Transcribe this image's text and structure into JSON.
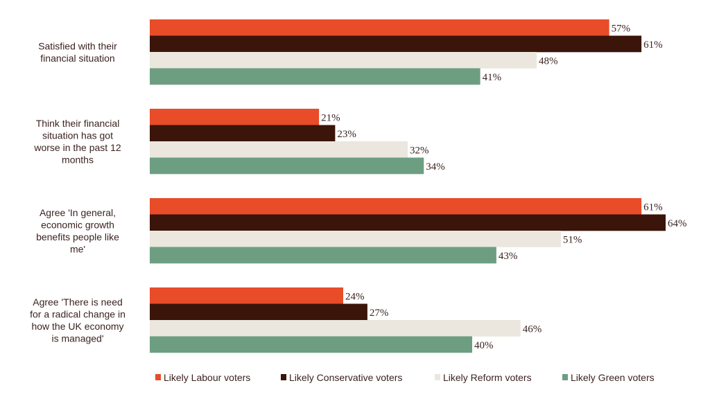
{
  "chart_data": {
    "type": "bar",
    "orientation": "horizontal",
    "categories": [
      [
        "Satisfied with their",
        "financial situation"
      ],
      [
        "Think their financial",
        "situation has got",
        "worse in the past 12",
        "months"
      ],
      [
        "Agree 'In general,",
        "economic growth",
        "benefits people like",
        "me'"
      ],
      [
        "Agree 'There is need",
        "for a radical change in",
        "how the UK economy",
        "is managed'"
      ]
    ],
    "series": [
      {
        "name": "Likely Labour voters",
        "color": "#e84c29",
        "values": [
          57,
          21,
          61,
          24
        ]
      },
      {
        "name": "Likely Conservative voters",
        "color": "#3b140a",
        "values": [
          61,
          23,
          64,
          27
        ]
      },
      {
        "name": "Likely Reform voters",
        "color": "#ebe7de",
        "values": [
          48,
          32,
          51,
          46
        ]
      },
      {
        "name": "Likely Green voters",
        "color": "#6d9e82",
        "values": [
          41,
          34,
          43,
          40
        ]
      }
    ],
    "value_suffix": "%",
    "xlim": [
      0,
      64
    ],
    "grid": false,
    "legend_position": "bottom"
  }
}
